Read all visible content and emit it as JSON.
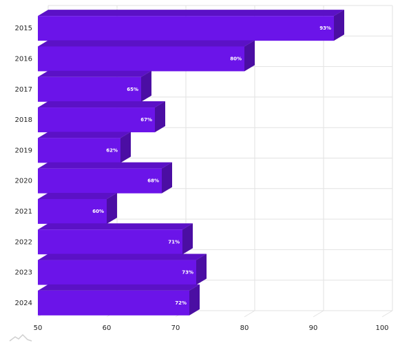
{
  "chart_data": {
    "type": "bar3d",
    "orientation": "horizontal",
    "categories": [
      "2015",
      "2016",
      "2017",
      "2018",
      "2019",
      "2020",
      "2021",
      "2022",
      "2023",
      "2024"
    ],
    "values": [
      93,
      80,
      65,
      67,
      62,
      68,
      60,
      71,
      73,
      72
    ],
    "value_labels": [
      "93%",
      "80%",
      "65%",
      "67%",
      "62%",
      "68%",
      "60%",
      "71%",
      "73%",
      "72%"
    ],
    "color": "#6b14e9",
    "xlim": [
      50,
      100
    ],
    "xticks": [
      50,
      60,
      70,
      80,
      90,
      100
    ],
    "grid": true
  }
}
